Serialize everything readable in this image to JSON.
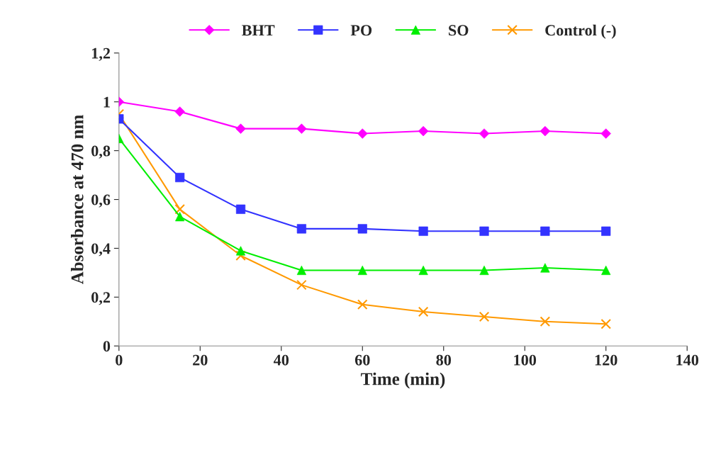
{
  "chart_data": {
    "type": "line",
    "xlabel": "Time (min)",
    "ylabel": "Absorbance at 470 nm",
    "x": [
      0,
      15,
      30,
      45,
      60,
      75,
      90,
      105,
      120
    ],
    "series": [
      {
        "name": "BHT",
        "color": "#ff00ff",
        "marker": "diamond",
        "values": [
          1.0,
          0.96,
          0.89,
          0.89,
          0.87,
          0.88,
          0.87,
          0.88,
          0.87
        ]
      },
      {
        "name": "PO",
        "color": "#3333ff",
        "marker": "square",
        "values": [
          0.93,
          0.69,
          0.56,
          0.48,
          0.48,
          0.47,
          0.47,
          0.47,
          0.47
        ]
      },
      {
        "name": "SO",
        "color": "#00ee00",
        "marker": "triangle",
        "values": [
          0.85,
          0.53,
          0.39,
          0.31,
          0.31,
          0.31,
          0.31,
          0.32,
          0.31
        ]
      },
      {
        "name": "Control (-)",
        "color": "#ff9900",
        "marker": "cross",
        "values": [
          0.95,
          0.56,
          0.37,
          0.25,
          0.17,
          0.14,
          0.12,
          0.1,
          0.09
        ]
      }
    ],
    "xlim": [
      0,
      140
    ],
    "xticks": [
      0,
      20,
      40,
      60,
      80,
      100,
      120,
      140
    ],
    "ylim": [
      0,
      1.2
    ],
    "yticks": [
      0,
      {
        "value": 0.2,
        "label": "0,2"
      },
      {
        "value": 0.4,
        "label": "0,4"
      },
      {
        "value": 0.6,
        "label": "0,6"
      },
      {
        "value": 0.8,
        "label": "0,8"
      },
      1,
      {
        "value": 1.2,
        "label": "1,2"
      }
    ],
    "legend": "top",
    "grid": false
  }
}
